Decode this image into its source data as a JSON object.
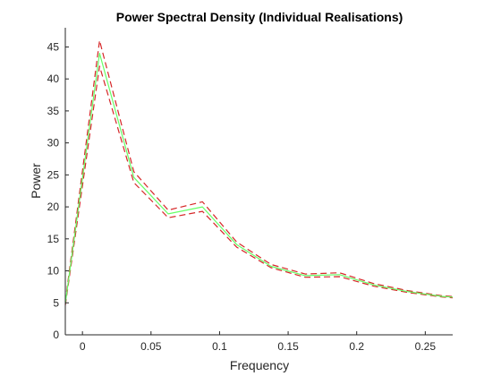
{
  "chart_data": {
    "type": "line",
    "title": "Power Spectral Density (Individual Realisations)",
    "xlabel": "Frequency",
    "ylabel": "Power",
    "xlim": [
      -0.0125,
      0.27
    ],
    "ylim": [
      0,
      48
    ],
    "xticks": [
      0,
      0.05,
      0.1,
      0.15,
      0.2,
      0.25
    ],
    "xtick_labels": [
      "0",
      "0.05",
      "0.1",
      "0.15",
      "0.2",
      "0.25"
    ],
    "yticks": [
      0,
      5,
      10,
      15,
      20,
      25,
      30,
      35,
      40,
      45
    ],
    "ytick_labels": [
      "0",
      "5",
      "10",
      "15",
      "20",
      "25",
      "30",
      "35",
      "40",
      "45"
    ],
    "grid": false,
    "legend": "none",
    "series": [
      {
        "style": "dashed",
        "color": "#d62728",
        "x": [
          -0.0125,
          0.0125,
          0.0375,
          0.0625,
          0.0875,
          0.1125,
          0.1375,
          0.1625,
          0.1875,
          0.2125,
          0.2375,
          0.2625,
          0.27
        ],
        "y": [
          5.2,
          46.0,
          25.5,
          19.5,
          20.8,
          14.5,
          11.0,
          9.5,
          9.7,
          8.0,
          6.9,
          6.1,
          6.0
        ]
      },
      {
        "style": "dashed",
        "color": "#d62728",
        "x": [
          -0.0125,
          0.0125,
          0.0375,
          0.0625,
          0.0875,
          0.1125,
          0.1375,
          0.1625,
          0.1875,
          0.2125,
          0.2375,
          0.2625,
          0.27
        ],
        "y": [
          4.6,
          42.0,
          23.8,
          18.3,
          19.3,
          13.7,
          10.5,
          9.0,
          9.1,
          7.6,
          6.6,
          5.9,
          5.8
        ]
      },
      {
        "style": "solid",
        "color": "#66ff66",
        "x": [
          -0.0125,
          0.0125,
          0.0375,
          0.0625,
          0.0875,
          0.1125,
          0.1375,
          0.1625,
          0.1875,
          0.2125,
          0.2375,
          0.2625,
          0.27
        ],
        "y": [
          4.9,
          44.0,
          24.6,
          18.9,
          20.0,
          14.1,
          10.7,
          9.25,
          9.4,
          7.8,
          6.75,
          6.0,
          5.9
        ]
      }
    ]
  }
}
